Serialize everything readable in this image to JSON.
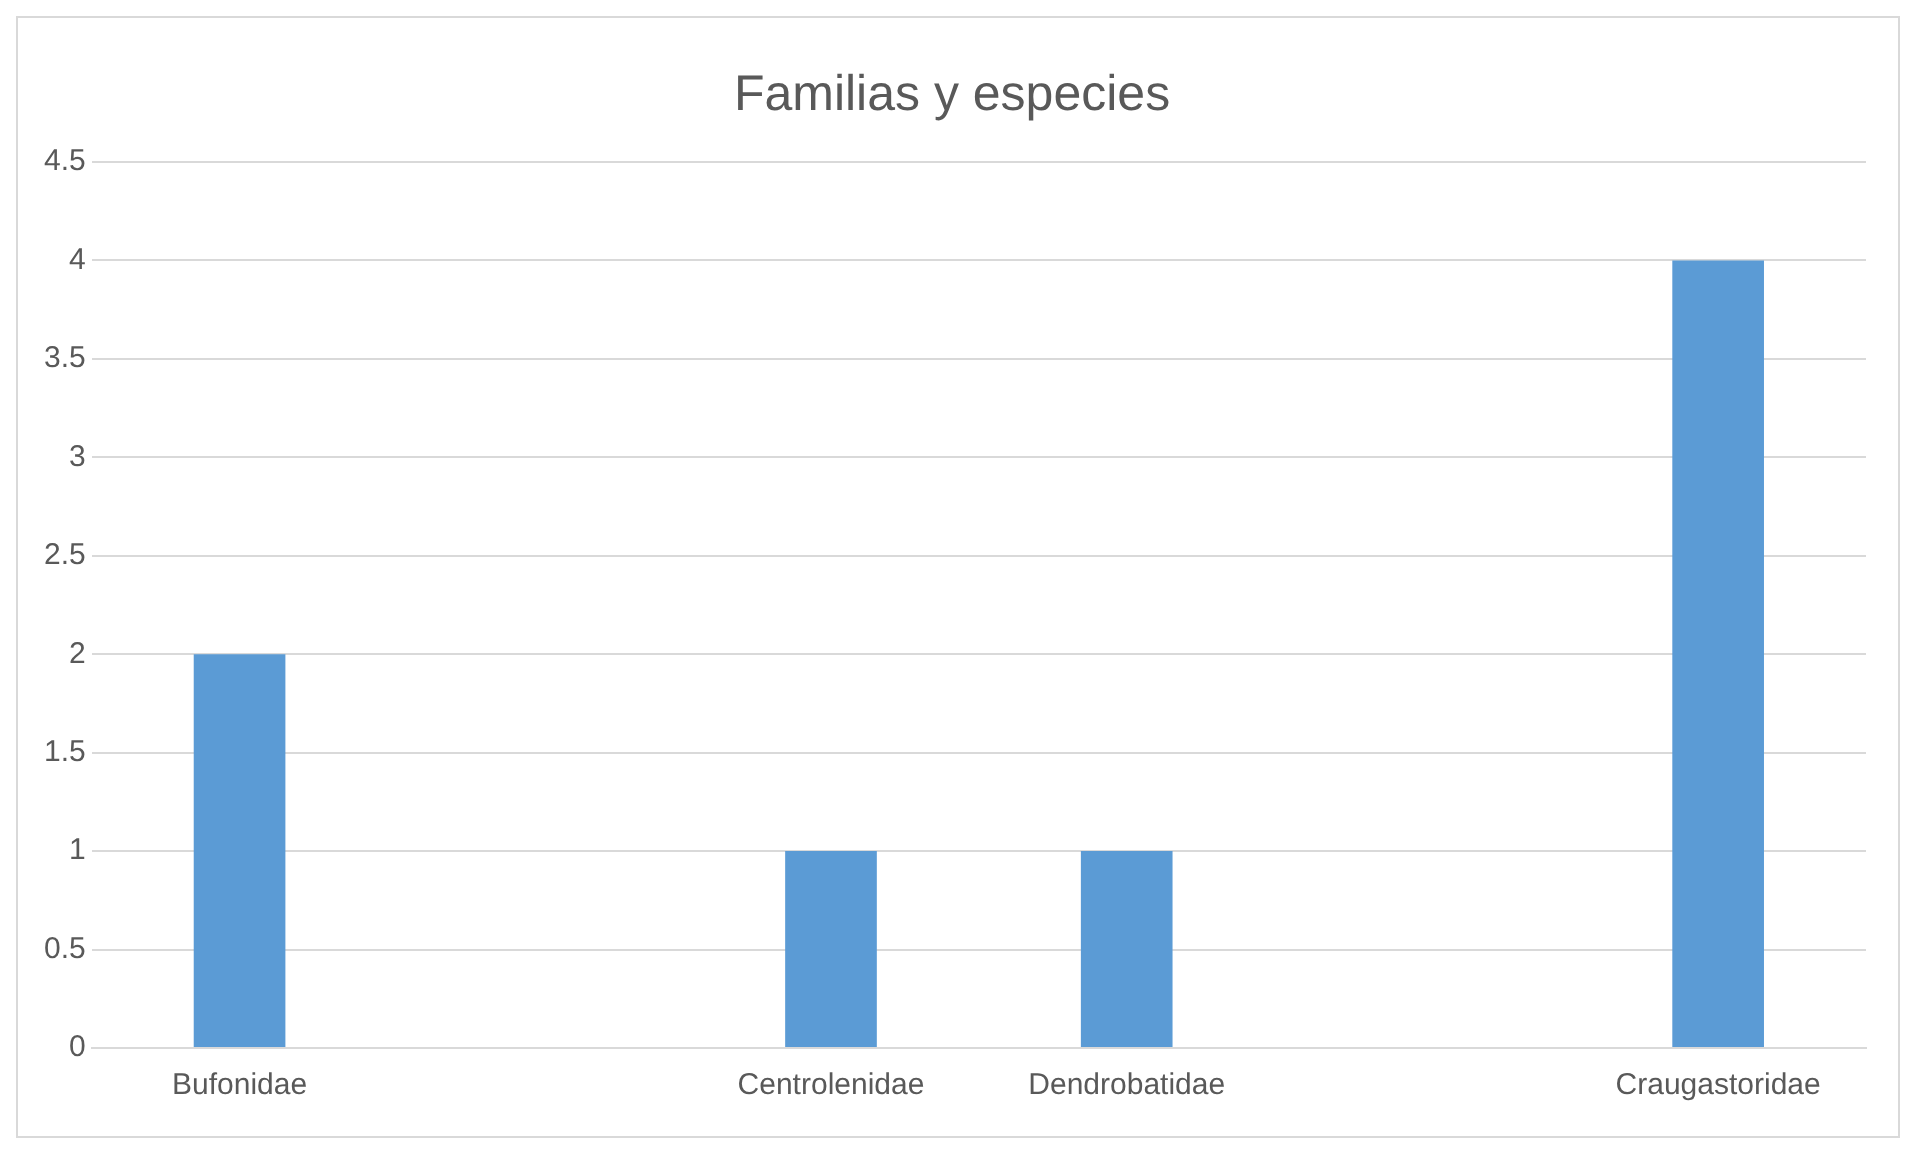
{
  "chart_data": {
    "type": "bar",
    "title": "Familias y especies",
    "categories": [
      "Bufonidae",
      null,
      "Centrolenidae",
      "Dendrobatidae",
      null,
      "Craugastoridae"
    ],
    "values": [
      2,
      null,
      1,
      1,
      null,
      4
    ],
    "color": "#5b9bd5",
    "ylim": [
      0,
      4.5
    ],
    "yticks": [
      0,
      0.5,
      1,
      1.5,
      2,
      2.5,
      3,
      3.5,
      4,
      4.5
    ],
    "grid": "y",
    "legend": false
  }
}
